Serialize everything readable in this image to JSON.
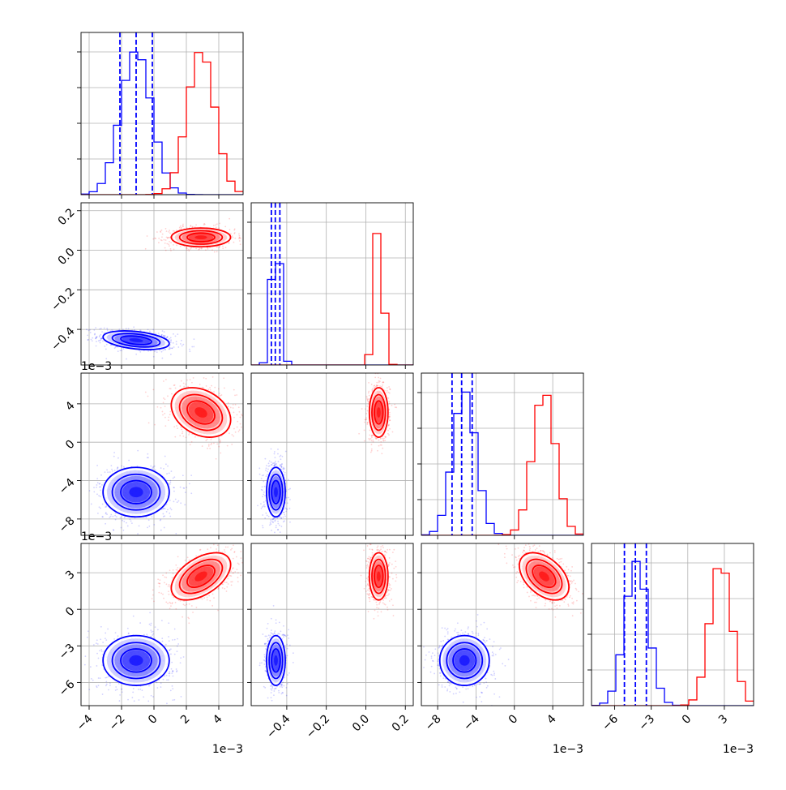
{
  "chart_data": {
    "type": "corner",
    "grid": true,
    "colors": {
      "series_a": "#0000ff",
      "series_b": "#ff0000"
    },
    "parameters": [
      {
        "range": [
          -0.0045,
          0.0055
        ],
        "ticks": [
          -0.004,
          -0.002,
          0.0,
          0.002,
          0.004
        ],
        "tick_labels": [
          "−4",
          "−2",
          "0",
          "2",
          "4"
        ],
        "offset_label": "1e−3"
      },
      {
        "range": [
          -0.58,
          0.24
        ],
        "ticks": [
          -0.4,
          -0.2,
          0.0,
          0.2
        ],
        "tick_labels": [
          "−0.4",
          "−0.2",
          "0.0",
          "0.2"
        ],
        "offset_label": ""
      },
      {
        "range": [
          -0.0097,
          0.0072
        ],
        "ticks": [
          -0.008,
          -0.004,
          0.0,
          0.004
        ],
        "tick_labels": [
          "−8",
          "−4",
          "0",
          "4"
        ],
        "offset_label": "1e−3"
      },
      {
        "range": [
          -0.0079,
          0.0054
        ],
        "ticks": [
          -0.006,
          -0.003,
          0.0,
          0.003
        ],
        "tick_labels": [
          "−6",
          "−3",
          "0",
          "3"
        ],
        "offset_label": "1e−3"
      }
    ],
    "series": [
      {
        "color": "#0000ff",
        "mean": [
          -0.0011,
          -0.455,
          -0.0052,
          -0.0042
        ],
        "std": [
          0.00095,
          0.022,
          0.0012,
          0.00095
        ],
        "corr": {
          "0-1": -0.35,
          "0-2": 0.0,
          "0-3": 0.0,
          "1-2": 0.0,
          "1-3": 0.0,
          "2-3": 0.0
        },
        "quantiles": [
          [
            -0.0021,
            -0.0011,
            -0.0001
          ],
          [
            -0.478,
            -0.458,
            -0.435
          ],
          [
            -0.0065,
            -0.0055,
            -0.0044
          ],
          [
            -0.0052,
            -0.0043,
            -0.0034
          ]
        ]
      },
      {
        "color": "#ff0000",
        "mean": [
          0.0029,
          0.065,
          0.0031,
          0.0027
        ],
        "std": [
          0.00085,
          0.022,
          0.0012,
          0.0009
        ],
        "corr": {
          "0-1": 0.0,
          "0-2": -0.3,
          "0-3": 0.5,
          "1-2": 0.0,
          "1-3": 0.0,
          "2-3": -0.45
        },
        "quantiles": null
      }
    ]
  }
}
